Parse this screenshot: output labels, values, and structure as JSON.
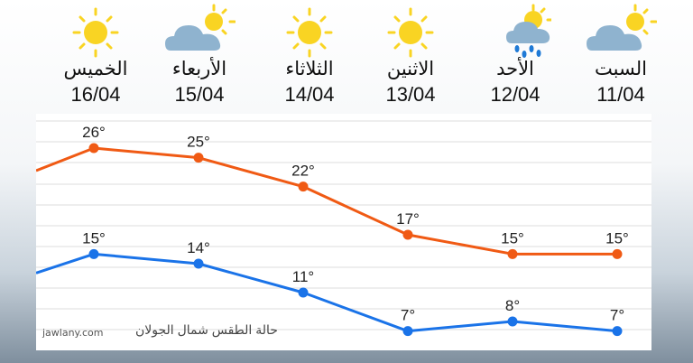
{
  "days": [
    {
      "name": "الخميس",
      "date": "16/04",
      "icon": "sun-icon"
    },
    {
      "name": "الأربعاء",
      "date": "15/04",
      "icon": "partly-cloudy-icon"
    },
    {
      "name": "الثلاثاء",
      "date": "14/04",
      "icon": "sun-icon"
    },
    {
      "name": "الاثنين",
      "date": "13/04",
      "icon": "sun-icon"
    },
    {
      "name": "الأحد",
      "date": "12/04",
      "icon": "rain-cloud-sun-icon"
    },
    {
      "name": "السبت",
      "date": "11/04",
      "icon": "partly-cloudy-icon"
    }
  ],
  "caption": "حالة الطقس شمال الجولان",
  "watermark": "jawlany.com",
  "colors": {
    "high": "#f05a14",
    "low": "#1a73e8",
    "sun": "#f9d423",
    "cloud": "#8fb3cf",
    "rain": "#1f7ad6"
  },
  "chart_data": {
    "type": "line",
    "categories": [
      "16/04",
      "15/04",
      "14/04",
      "13/04",
      "12/04",
      "11/04"
    ],
    "series": [
      {
        "key": "high",
        "values": [
          26,
          25,
          22,
          17,
          15,
          15
        ],
        "labels": [
          "26°",
          "25°",
          "22°",
          "17°",
          "15°",
          "15°"
        ]
      },
      {
        "key": "low",
        "values": [
          15,
          14,
          11,
          7,
          8,
          7
        ],
        "labels": [
          "15°",
          "14°",
          "11°",
          "7°",
          "8°",
          "7°"
        ]
      }
    ],
    "ylim": [
      5,
      29
    ],
    "grid": true,
    "legend": "none"
  }
}
